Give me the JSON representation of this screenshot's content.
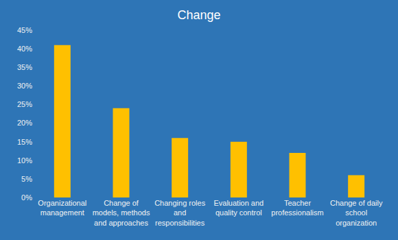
{
  "chart_data": {
    "type": "bar",
    "title": "Change",
    "categories": [
      "Organizational management",
      "Change of models, methods and approaches",
      "Changing roles and responsibilities",
      "Evaluation and quality control",
      "Teacher professionalism",
      "Change of daily school organization"
    ],
    "values": [
      41,
      24,
      16,
      15,
      12,
      6
    ],
    "color": "#ffc000",
    "ylim": [
      0,
      45
    ],
    "yticks": [
      {
        "value": 0,
        "label": "0%"
      },
      {
        "value": 5,
        "label": "5%"
      },
      {
        "value": 10,
        "label": "10%"
      },
      {
        "value": 15,
        "label": "15%"
      },
      {
        "value": 20,
        "label": "20%"
      },
      {
        "value": 25,
        "label": "25%"
      },
      {
        "value": 30,
        "label": "30%"
      },
      {
        "value": 35,
        "label": "35%"
      },
      {
        "value": 40,
        "label": "40%"
      },
      {
        "value": 45,
        "label": "45%"
      }
    ],
    "grid": false
  }
}
